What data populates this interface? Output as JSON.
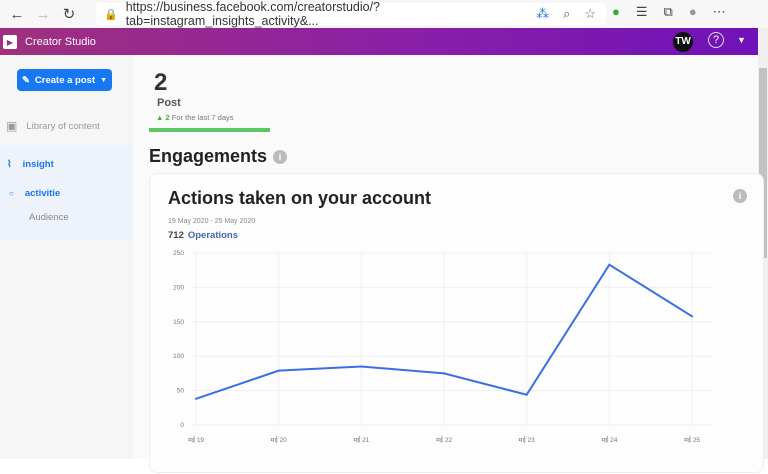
{
  "browser": {
    "url": "https://business.facebook.com/creatorstudio/?tab=instagram_insights_activity&..."
  },
  "topbar": {
    "title": "Creator Studio",
    "avatar": "TW",
    "help": "?"
  },
  "sidebar": {
    "create_label": "Create a post",
    "library": "Library of content",
    "insight": "insight",
    "activity": "activitie",
    "audience": "Audience"
  },
  "summary": {
    "count": "2",
    "label": "Post",
    "delta": "2",
    "period": "For the last 7 days"
  },
  "engagements": {
    "title": "Engagements"
  },
  "card": {
    "title": "Actions taken on your account",
    "date_range": "19 May 2020 - 25 May 2020",
    "total": "712",
    "total_label": "Operations"
  },
  "colors": {
    "accent": "#1877f2",
    "line": "#3b6fe0",
    "green": "#5ac763"
  },
  "chart_data": {
    "type": "line",
    "categories": [
      "मई 19",
      "मई 20",
      "मई 21",
      "मई 22",
      "मई 23",
      "मई 24",
      "मई 25"
    ],
    "values": [
      38,
      79,
      85,
      75,
      44,
      233,
      158
    ],
    "yticks": [
      0,
      50,
      100,
      150,
      200,
      250
    ],
    "ylim": [
      0,
      250
    ],
    "grid": true
  }
}
